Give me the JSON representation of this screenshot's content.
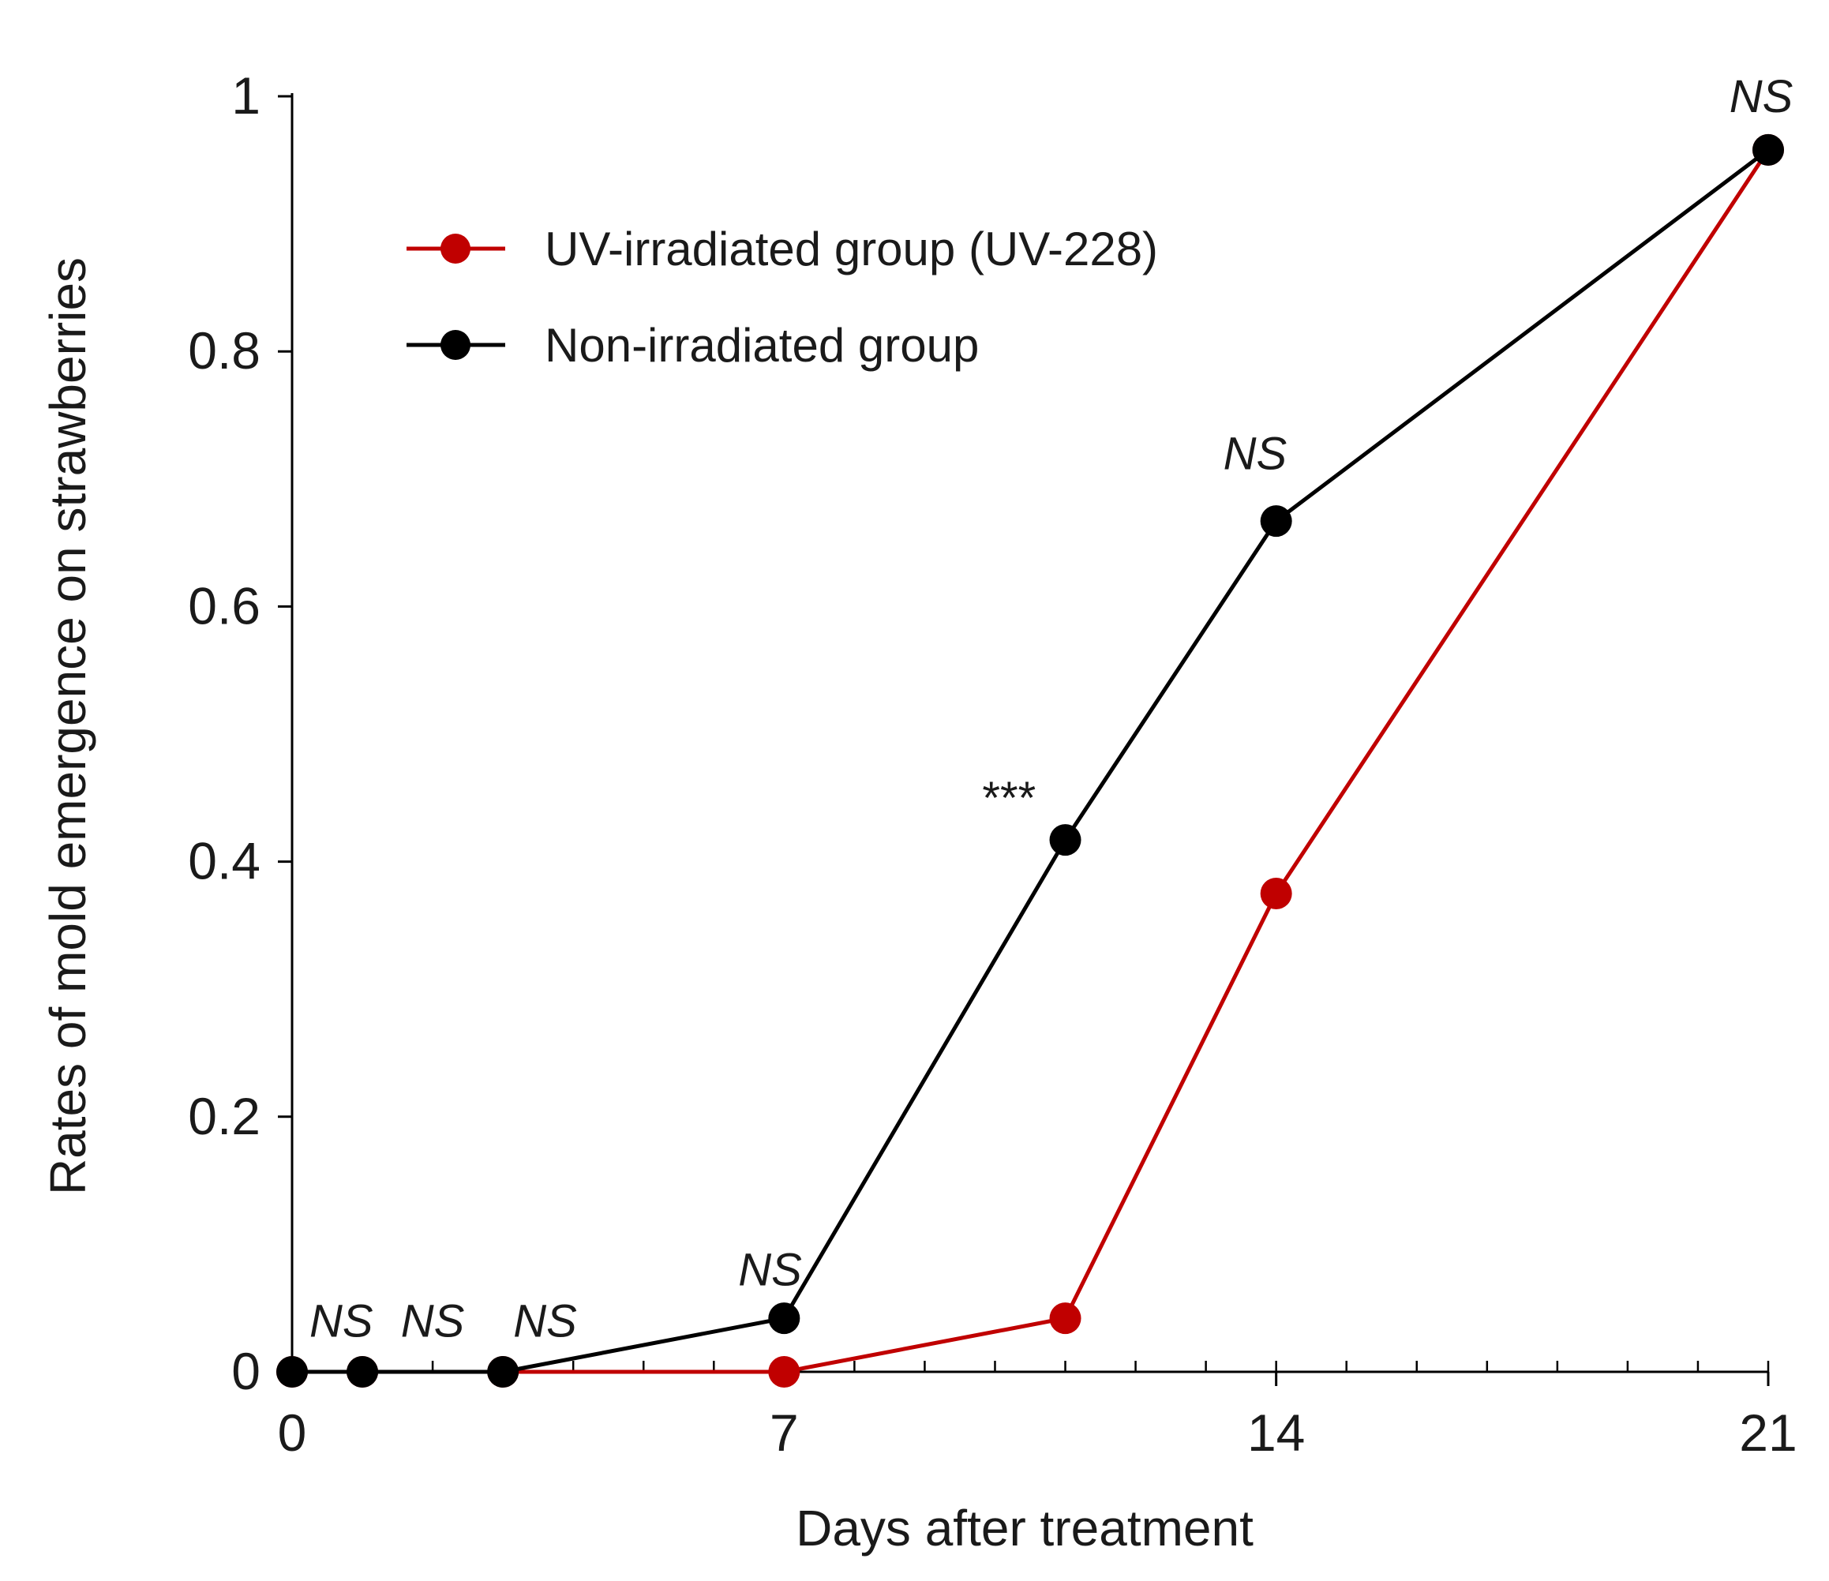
{
  "chart_data": {
    "type": "line",
    "xlabel": "Days after treatment",
    "ylabel": "Rates of mold emergence on strawberries",
    "xlim": [
      0,
      21
    ],
    "ylim": [
      0,
      1
    ],
    "x_major_ticks": [
      0,
      7,
      14,
      21
    ],
    "x_minor_tick_step": 1,
    "y_ticks": [
      0,
      0.2,
      0.4,
      0.6,
      0.8,
      1
    ],
    "x_tick_labels": [
      "0",
      "7",
      "14",
      "21"
    ],
    "y_tick_labels": [
      "0",
      "0.2",
      "0.4",
      "0.6",
      "0.8",
      "1"
    ],
    "grid": false,
    "legend_position": "top-left",
    "series": [
      {
        "name": "UV-irradiated group (UV-228)",
        "color": "#c00000",
        "x": [
          0,
          1,
          3,
          7,
          11,
          14,
          21
        ],
        "y": [
          0,
          0,
          0,
          0,
          0.042,
          0.375,
          0.958
        ]
      },
      {
        "name": "Non-irradiated group",
        "color": "#000000",
        "x": [
          0,
          1,
          3,
          7,
          11,
          14,
          21
        ],
        "y": [
          0,
          0,
          0,
          0.042,
          0.417,
          0.667,
          0.958
        ]
      }
    ],
    "annotations": [
      {
        "text": "NS",
        "x": 0.7,
        "y": 0.04,
        "italic": true
      },
      {
        "text": "NS",
        "x": 2.0,
        "y": 0.04,
        "italic": true
      },
      {
        "text": "NS",
        "x": 3.6,
        "y": 0.04,
        "italic": true
      },
      {
        "text": "NS",
        "x": 6.8,
        "y": 0.08,
        "italic": true
      },
      {
        "text": "***",
        "x": 10.2,
        "y": 0.45,
        "italic": false
      },
      {
        "text": "NS",
        "x": 13.7,
        "y": 0.72,
        "italic": true
      },
      {
        "text": "NS",
        "x": 20.9,
        "y": 1.0,
        "italic": true
      }
    ]
  }
}
